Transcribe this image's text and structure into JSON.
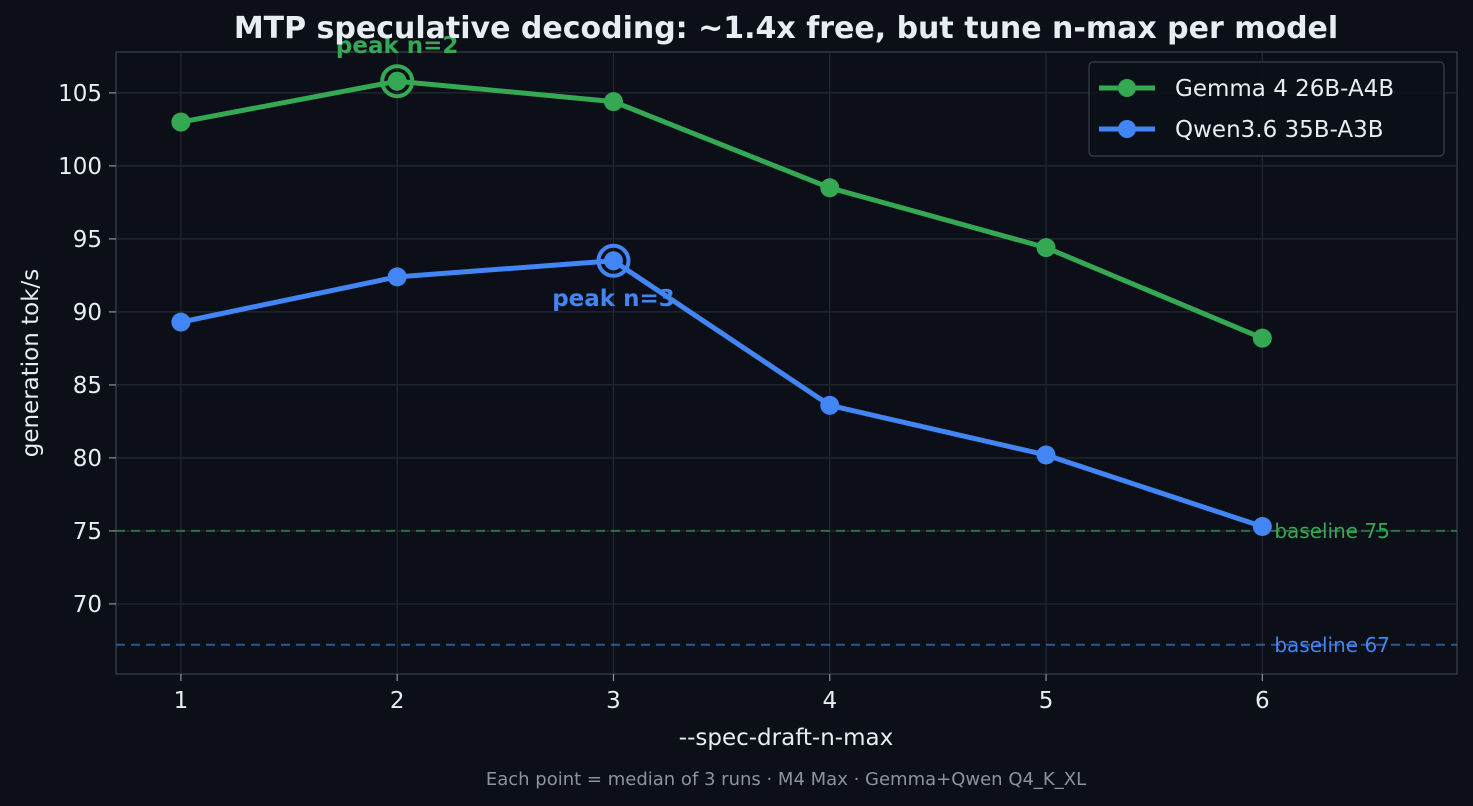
{
  "chart_data": {
    "type": "line",
    "title": "MTP speculative decoding: ~1.4x free, but tune n-max per model",
    "xlabel": "--spec-draft-n-max",
    "ylabel": "generation tok/s",
    "footnote": "Each point = median of 3 runs · M4 Max · Gemma+Qwen Q4_K_XL",
    "x": [
      1,
      2,
      3,
      4,
      5,
      6
    ],
    "xlim": [
      0.7,
      6.9
    ],
    "ylim": [
      65.2,
      107.8
    ],
    "xticks": [
      "1",
      "2",
      "3",
      "4",
      "5",
      "6"
    ],
    "yticks": [
      "70",
      "75",
      "80",
      "85",
      "90",
      "95",
      "100",
      "105"
    ],
    "grid": true,
    "legend_position": "top-right",
    "series": [
      {
        "name": "Gemma 4 26B-A4B",
        "color": "#34a853",
        "values": [
          103.0,
          105.8,
          104.4,
          98.5,
          94.4,
          88.2
        ],
        "peak_x": 2,
        "peak_label": "peak n=2",
        "baseline": 75,
        "baseline_label": "baseline 75"
      },
      {
        "name": "Qwen3.6 35B-A3B",
        "color": "#4285f4",
        "values": [
          89.3,
          92.4,
          93.5,
          83.6,
          80.2,
          75.3
        ],
        "peak_x": 3,
        "peak_label": "peak n=3",
        "baseline": 67.2,
        "baseline_label": "baseline 67"
      }
    ]
  }
}
